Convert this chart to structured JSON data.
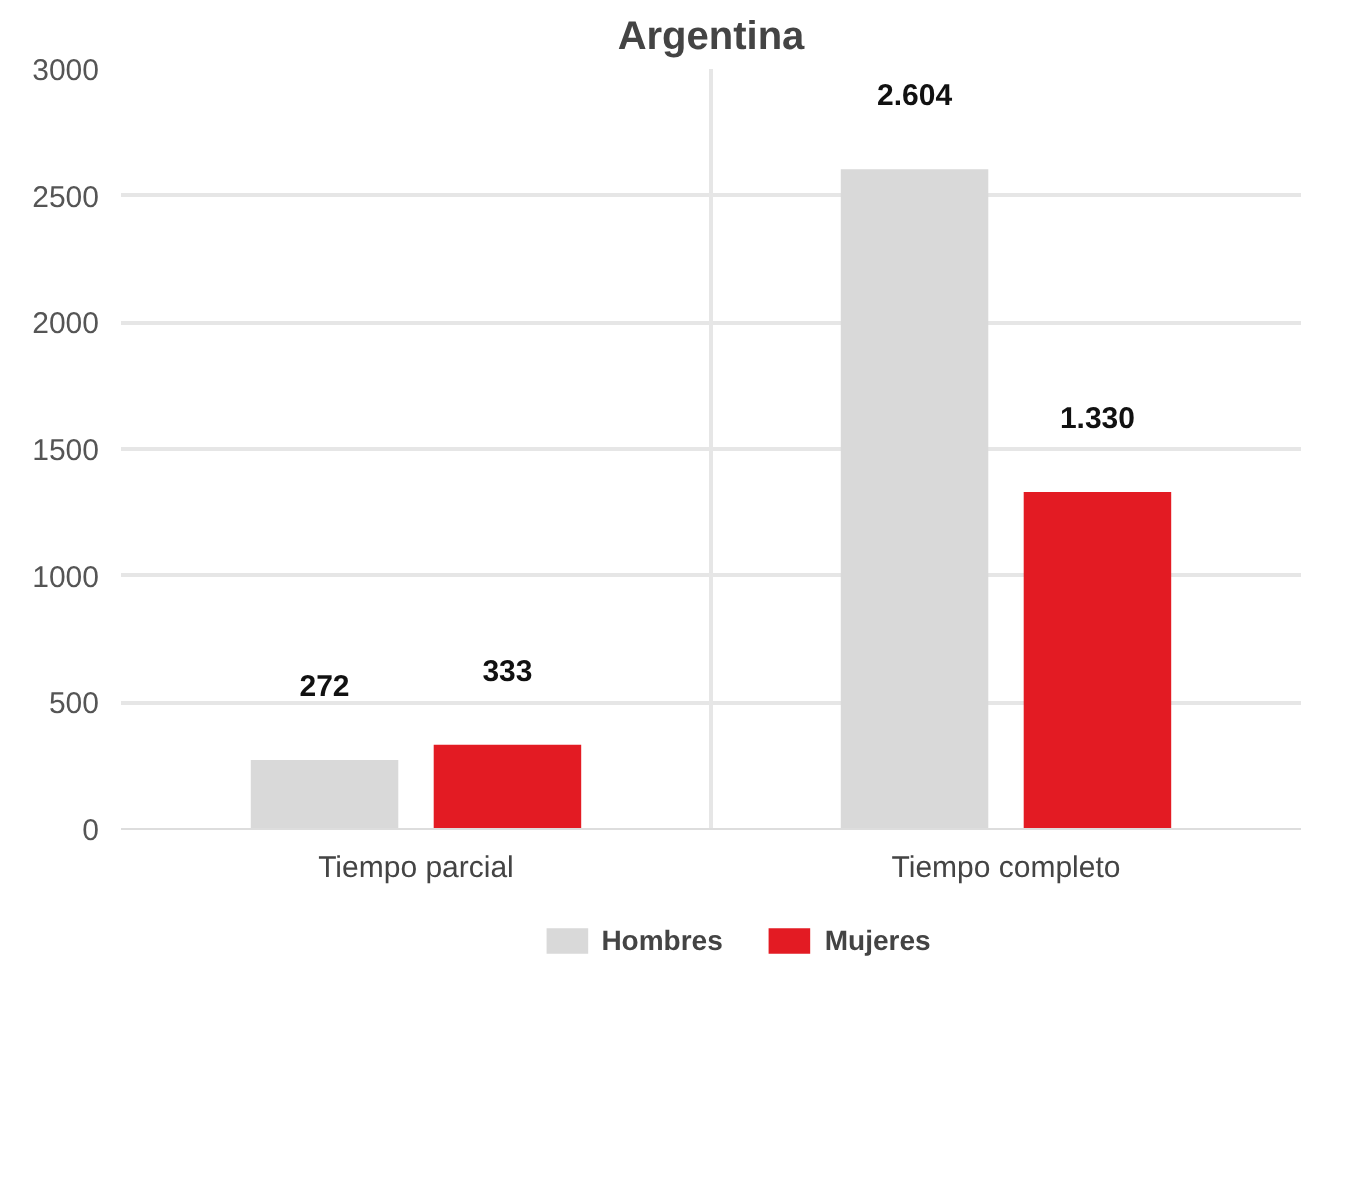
{
  "chart_data": {
    "type": "bar",
    "title": "Argentina",
    "categories": [
      "Tiempo parcial",
      "Tiempo completo"
    ],
    "series": [
      {
        "name": "Hombres",
        "color": "#d9d9d9",
        "values": [
          272,
          2604
        ],
        "value_labels": [
          "272",
          "2.604"
        ]
      },
      {
        "name": "Mujeres",
        "color": "#e31b23",
        "values": [
          333,
          1330
        ],
        "value_labels": [
          "333",
          "1.330"
        ]
      }
    ],
    "ylim": [
      0,
      3000
    ],
    "yticks": [
      0,
      500,
      1000,
      1500,
      2000,
      2500,
      3000
    ],
    "grid": true,
    "legend": "bottom"
  }
}
